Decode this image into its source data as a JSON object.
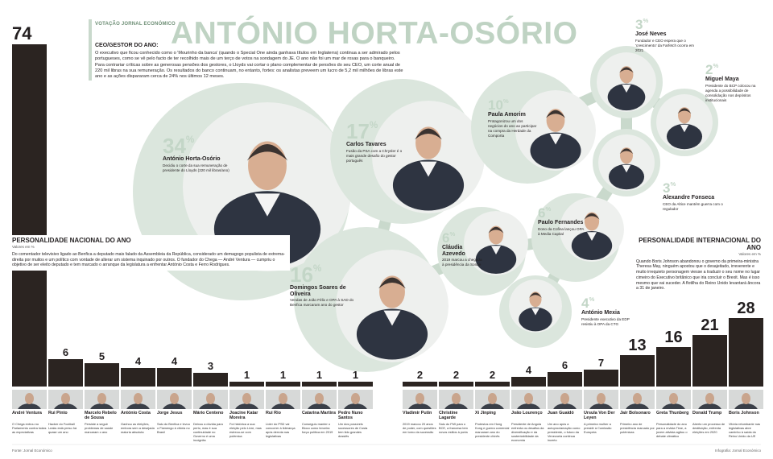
{
  "header": {
    "kicker": "VOTAÇÃO JORNAL ECONÓMICO",
    "title": "ANTÓNIO HORTA-OSÓRIO",
    "lead_heading": "CEO/GESTOR DO ANO:",
    "lead": "O executivo que ficou conhecido como o 'Mourinho da banca' (quando o Special One ainda ganhava títulos em Inglaterra) continua a ser admirado pelos portugueses, como se vê pelo facto de ter recolhido mais de um terço de votos na sondagem do JE. O ano não foi um mar de rosas para o banqueiro. Para contrariar críticas sobre as generosas pensões dos gestores, o Lloyds vai cortar o plano complementar de pensões do seu CEO, um corte anual de 220 mil libras na sua remuneração. Os resultados do banco continuam, no entanto, fortes: os analistas preveem um lucro de 5,2 mil milhões de libras este ano e as ações dispararam cerca de 24% nos últimos 12 meses."
  },
  "ceo_ranking": {
    "unit": "%",
    "people": [
      {
        "value": 34,
        "name": "António Horta-Osório",
        "desc": "Decidiu o corte da sua remuneração de presidente do Lloyds (220 mil libras/ano)"
      },
      {
        "value": 17,
        "name": "Carlos Tavares",
        "desc": "Fusão da PSA com a Chrysler é o mais grande desafio do gestor português"
      },
      {
        "value": 16,
        "name": "Domingos Soares de Oliveira",
        "desc": "Vendas de João Félix e OPA à SAD do Benfica marcaram ano do gestor"
      },
      {
        "value": 10,
        "name": "Paula Amorim",
        "desc": "Protagonizou um dos negócios do ano ao participar na compra da Herdade da Comporta"
      },
      {
        "value": 6,
        "name": "Cláudia Azevedo",
        "desc": "2019 marcou a chegada à presidência da Sonae"
      },
      {
        "value": 6,
        "name": "Paulo Fernandes",
        "desc": "Dono da Cofina lançou OPA à Media Capital"
      },
      {
        "value": 4,
        "name": "António Mexia",
        "desc": "Presidente executivo da EDP resistiu à OPA da CTG"
      },
      {
        "value": 3,
        "name": "José Neves",
        "desc": "Fundador e CEO espera que o 'crescimento' da Farfetch ocorra em 2021"
      },
      {
        "value": 2,
        "name": "Miguel Maya",
        "desc": "Presidente do BCP colocou na agenda a possibilidade de consolidação nos depósitos institucionais"
      },
      {
        "value": 3,
        "name": "Alexandre Fonseca",
        "desc": "CEO da Altice mantém guerra com o regulador"
      }
    ]
  },
  "chart_data": [
    {
      "type": "bar",
      "title": "PERSONALIDADE NACIONAL DO ANO",
      "subtitle": "Valores em %",
      "description": "Do comentador televisivo ligado ao Benfica a deputado mais falado da Assembleia da República, considerado um demagogo populista de extrema-direita por muitos e um político com vontade de alterar um sistema inquinado por outros. O fundador do Chega — André Ventura — cumpriu o objetivo de ser eleito deputado e tem marcado o arranque da legislatura a enfrentar António Costa e Ferro Rodrigues.",
      "categories": [
        "André Ventura",
        "Rui Pinto",
        "Marcelo Rebelo de Sousa",
        "António Costa",
        "Jorge Jesus",
        "Mário Centeno",
        "Joacine Katar Moreira",
        "Rui Rio",
        "Catarina Martins",
        "Pedro Nuno Santos"
      ],
      "notes": [
        "O Chega entrou no Parlamento contra todas as expectativas",
        "Hacker do Football Leaks está preso há quase um ano",
        "Persiste a seguir problemas de saúde marcaram o ano",
        "Ganhou as eleições, embora sem a desejada maioria absoluta",
        "Saiu do Benfica e levou o Flamengo à vitória no Brasil",
        "Deixou a dúvida para perto, mas é sua continuidade no Governo é uma incógnita",
        "Foi histórica a sua eleição pelo Livre, mas estreou-se com polémica",
        "Líder do PSD vai concorrer à liderança após derrota nas legislativas",
        "Conseguiu manter o Bloco como terceira força política em 2019",
        "Um dos possíveis sucessores de Costa tem tido grandes dossiês"
      ],
      "values": [
        74,
        6,
        5,
        4,
        4,
        3,
        1,
        1,
        1,
        1
      ],
      "color": "#2b2421",
      "ylim": [
        0,
        74
      ]
    },
    {
      "type": "bar",
      "title": "PERSONALIDADE INTERNACIONAL DO ANO",
      "subtitle": "Valores em %",
      "description": "Quando Boris Johnson abandonou o governo da primeira-ministra Theresa May, ninguém apostou que o desajeitado, irreverente e muito irrequieto personagem viesse a traduzir o seu nome no lugar cimeiro do Executivo britânico que iria concluir o Brexit. Mas é isso mesmo que vai suceder. A flotilha do Reino Unido levantará âncora a 31 de janeiro.",
      "categories": [
        "Vladimir Putin",
        "Christine Lagarde",
        "Xi Jinping",
        "João Lourenço",
        "Juan Guaidó",
        "Ursula Von Der Leyen",
        "Jair Bolsonaro",
        "Greta Thunberg",
        "Donald Trump",
        "Boris Johnson"
      ],
      "notes": [
        "2019 marcou 20 anos de poder, com questões em torno da sucessão",
        "Saiu do FMI para o BCE, a francesa tem novos estilos à porta",
        "Protestos em Hong Kong e guerra comercial marcaram ano do presidente chinês",
        "Presidente de Angola enfrenta os desafios da diversificação e da sustentabilidade da economia",
        "Um ano após a autoproclamação como presidente, o futuro da Venezuela continua incerto",
        "A primeira mulher a presidir à Comissão Europeia",
        "Primeiro ano de presidência marcado por polémicas",
        "Personalidade do ano para a revista Time, a jovem ativista agitou o debate climático",
        "Aberto um processo de destituição, enfrenta eleições em 2020",
        "Vitória retumbante nas legislativas abre caminho à saída do Reino Unido da UE"
      ],
      "values": [
        2,
        2,
        2,
        4,
        6,
        7,
        13,
        16,
        21,
        28
      ],
      "color": "#2b2421",
      "ylim": [
        0,
        28
      ]
    }
  ],
  "footer": {
    "source": "Fonte: Jornal Económico",
    "credits": "Infografia: Jornal Económico"
  }
}
